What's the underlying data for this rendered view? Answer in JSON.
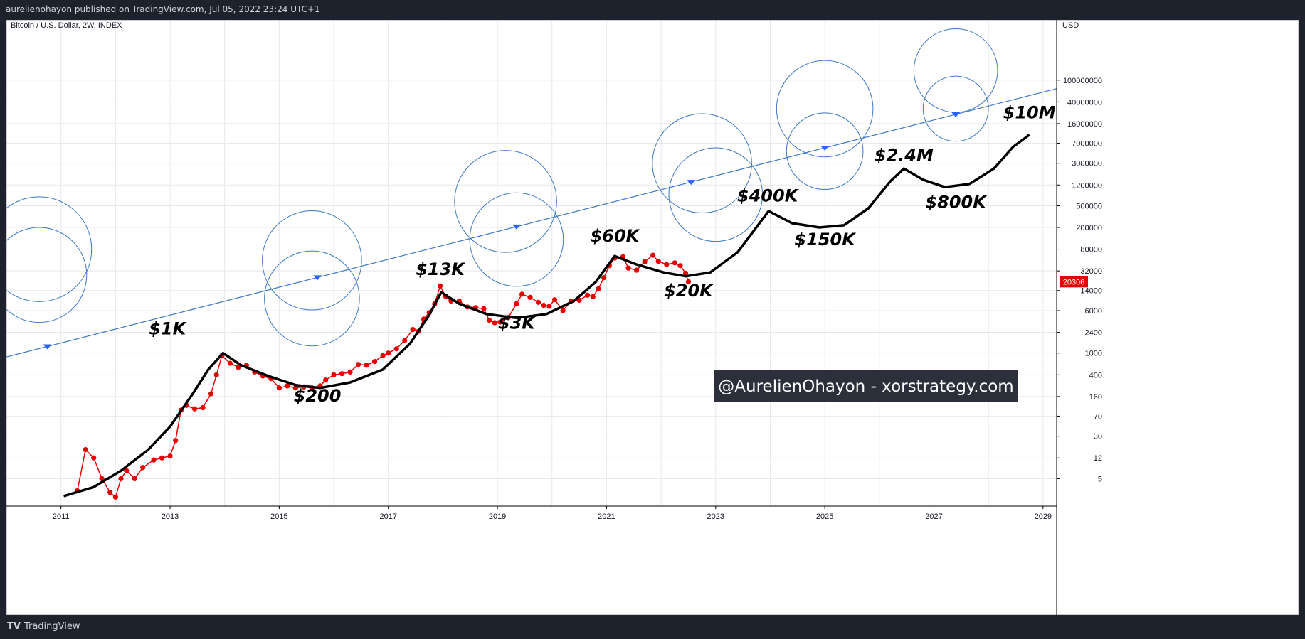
{
  "header": {
    "published": "aurelienohayon published on TradingView.com, Jul 05, 2022 23:24 UTC+1"
  },
  "footer": {
    "brand": "TradingView",
    "logo": "TV"
  },
  "colors": {
    "accent": "#2962ff",
    "price": "#e60000",
    "projection": "#000000",
    "circles": "#3d77c6",
    "watermark_bg": "#1e222d"
  },
  "chart_data": {
    "type": "line",
    "title": "Bitcoin / U.S. Dollar, 2W, INDEX",
    "y_axis_label": "USD",
    "y_scale": "log",
    "xlim": [
      2010,
      2029.25
    ],
    "ylim": [
      2,
      1000000000
    ],
    "grid": true,
    "x_ticks": [
      "2011",
      "2013",
      "2015",
      "2017",
      "2019",
      "2021",
      "2023",
      "2025",
      "2027",
      "2029"
    ],
    "y_ticks": [
      "100000000",
      "40000000",
      "16000000",
      "7000000",
      "3000000",
      "1200000",
      "500000",
      "200000",
      "80000",
      "32000",
      "14000",
      "6000",
      "2400",
      "1000",
      "400",
      "160",
      "70",
      "30",
      "12",
      "5"
    ],
    "last_price_label": "20306",
    "watermark": "@AurelienOhayon - xorstrategy.com",
    "annotations": [
      {
        "text": "$1K",
        "x": 2012.95,
        "y": 2200
      },
      {
        "text": "$200",
        "x": 2015.7,
        "y": 130
      },
      {
        "text": "$13K",
        "x": 2017.95,
        "y": 27000
      },
      {
        "text": "$3K",
        "x": 2019.35,
        "y": 2800
      },
      {
        "text": "$60K",
        "x": 2021.15,
        "y": 110000
      },
      {
        "text": "$20K",
        "x": 2022.5,
        "y": 11000
      },
      {
        "text": "$400K",
        "x": 2023.95,
        "y": 600000
      },
      {
        "text": "$150K",
        "x": 2025.0,
        "y": 95000
      },
      {
        "text": "$2.4M",
        "x": 2026.45,
        "y": 3300000
      },
      {
        "text": "$800K",
        "x": 2027.4,
        "y": 460000
      },
      {
        "text": "$10M",
        "x": 2028.75,
        "y": 20000000
      }
    ],
    "series": [
      {
        "kind": "actual",
        "points": [
          [
            2011.3,
            3
          ],
          [
            2011.45,
            17
          ],
          [
            2011.6,
            12
          ],
          [
            2011.75,
            5
          ],
          [
            2011.9,
            2.8
          ],
          [
            2012.0,
            2.3
          ],
          [
            2012.1,
            5
          ],
          [
            2012.2,
            7
          ],
          [
            2012.35,
            5
          ],
          [
            2012.5,
            8
          ],
          [
            2012.7,
            11
          ],
          [
            2012.85,
            12
          ],
          [
            2013.0,
            13
          ],
          [
            2013.1,
            25
          ],
          [
            2013.2,
            90
          ],
          [
            2013.3,
            110
          ],
          [
            2013.45,
            95
          ],
          [
            2013.6,
            100
          ],
          [
            2013.75,
            180
          ],
          [
            2013.85,
            400
          ],
          [
            2013.95,
            900
          ],
          [
            2014.1,
            650
          ],
          [
            2014.25,
            550
          ],
          [
            2014.4,
            600
          ],
          [
            2014.55,
            450
          ],
          [
            2014.7,
            380
          ],
          [
            2014.85,
            340
          ],
          [
            2015.0,
            230
          ],
          [
            2015.15,
            250
          ],
          [
            2015.3,
            230
          ],
          [
            2015.45,
            240
          ],
          [
            2015.6,
            230
          ],
          [
            2015.75,
            250
          ],
          [
            2015.85,
            320
          ],
          [
            2016.0,
            400
          ],
          [
            2016.15,
            420
          ],
          [
            2016.3,
            450
          ],
          [
            2016.45,
            620
          ],
          [
            2016.6,
            600
          ],
          [
            2016.75,
            700
          ],
          [
            2016.9,
            900
          ],
          [
            2017.0,
            1000
          ],
          [
            2017.15,
            1200
          ],
          [
            2017.3,
            1700
          ],
          [
            2017.45,
            2700
          ],
          [
            2017.55,
            2500
          ],
          [
            2017.65,
            4200
          ],
          [
            2017.75,
            5500
          ],
          [
            2017.85,
            8000
          ],
          [
            2017.95,
            17000
          ],
          [
            2018.05,
            11000
          ],
          [
            2018.15,
            9000
          ],
          [
            2018.3,
            9000
          ],
          [
            2018.45,
            7000
          ],
          [
            2018.6,
            6800
          ],
          [
            2018.75,
            6500
          ],
          [
            2018.85,
            4000
          ],
          [
            2018.95,
            3600
          ],
          [
            2019.05,
            3700
          ],
          [
            2019.2,
            4500
          ],
          [
            2019.35,
            8000
          ],
          [
            2019.45,
            12000
          ],
          [
            2019.6,
            10500
          ],
          [
            2019.75,
            8500
          ],
          [
            2019.85,
            7500
          ],
          [
            2019.95,
            7200
          ],
          [
            2020.05,
            9500
          ],
          [
            2020.2,
            6000
          ],
          [
            2020.35,
            9000
          ],
          [
            2020.5,
            9300
          ],
          [
            2020.65,
            11500
          ],
          [
            2020.75,
            10800
          ],
          [
            2020.85,
            15000
          ],
          [
            2020.95,
            24000
          ],
          [
            2021.05,
            40000
          ],
          [
            2021.15,
            55000
          ],
          [
            2021.3,
            58000
          ],
          [
            2021.4,
            36000
          ],
          [
            2021.55,
            33000
          ],
          [
            2021.7,
            47000
          ],
          [
            2021.85,
            62000
          ],
          [
            2021.95,
            48000
          ],
          [
            2022.1,
            42000
          ],
          [
            2022.25,
            45000
          ],
          [
            2022.35,
            40000
          ],
          [
            2022.45,
            29000
          ],
          [
            2022.5,
            20306
          ]
        ]
      },
      {
        "kind": "projection",
        "points": [
          [
            2011.05,
            2.4
          ],
          [
            2011.6,
            3.5
          ],
          [
            2012.1,
            7
          ],
          [
            2012.6,
            17
          ],
          [
            2013.0,
            45
          ],
          [
            2013.4,
            170
          ],
          [
            2013.7,
            500
          ],
          [
            2013.97,
            1000
          ],
          [
            2014.3,
            600
          ],
          [
            2014.8,
            380
          ],
          [
            2015.3,
            260
          ],
          [
            2015.75,
            230
          ],
          [
            2016.3,
            290
          ],
          [
            2016.9,
            500
          ],
          [
            2017.4,
            1500
          ],
          [
            2017.75,
            5000
          ],
          [
            2017.97,
            13000
          ],
          [
            2018.3,
            8000
          ],
          [
            2018.8,
            5200
          ],
          [
            2019.35,
            4400
          ],
          [
            2019.9,
            5200
          ],
          [
            2020.4,
            9000
          ],
          [
            2020.8,
            20000
          ],
          [
            2021.15,
            60000
          ],
          [
            2021.55,
            42000
          ],
          [
            2022.05,
            30000
          ],
          [
            2022.45,
            25500
          ],
          [
            2022.9,
            30000
          ],
          [
            2023.4,
            70000
          ],
          [
            2023.97,
            400000
          ],
          [
            2024.4,
            240000
          ],
          [
            2024.9,
            200000
          ],
          [
            2025.35,
            220000
          ],
          [
            2025.8,
            450000
          ],
          [
            2026.2,
            1400000
          ],
          [
            2026.45,
            2400000
          ],
          [
            2026.8,
            1500000
          ],
          [
            2027.2,
            1100000
          ],
          [
            2027.65,
            1250000
          ],
          [
            2028.1,
            2400000
          ],
          [
            2028.45,
            6000000
          ],
          [
            2028.75,
            10000000
          ]
        ]
      }
    ],
    "trendline": {
      "from": [
        2010.0,
        850
      ],
      "to": [
        2029.25,
        70000000
      ],
      "markers": [
        2010.75,
        2015.7,
        2019.35,
        2022.55,
        2025.0,
        2027.4
      ]
    },
    "cycle_circles": [
      {
        "cx": 2010.6,
        "cy": 80000,
        "r_years": 3.7
      },
      {
        "cx": 2010.6,
        "cy": 27000,
        "r_years": 3.35
      },
      {
        "cx": 2015.6,
        "cy": 50000,
        "r_years": 3.5
      },
      {
        "cx": 2015.6,
        "cy": 10000,
        "r_years": 3.35
      },
      {
        "cx": 2019.15,
        "cy": 600000,
        "r_years": 3.6
      },
      {
        "cx": 2019.35,
        "cy": 120000,
        "r_years": 3.3
      },
      {
        "cx": 2022.75,
        "cy": 3000000,
        "r_years": 3.5
      },
      {
        "cx": 2023.0,
        "cy": 800000,
        "r_years": 3.3
      },
      {
        "cx": 2025.0,
        "cy": 30000000,
        "r_years": 3.4
      },
      {
        "cx": 2025.0,
        "cy": 5000000,
        "r_years": 2.7
      },
      {
        "cx": 2027.4,
        "cy": 150000000,
        "r_years": 2.95
      },
      {
        "cx": 2027.4,
        "cy": 30000000,
        "r_years": 2.3
      }
    ]
  }
}
